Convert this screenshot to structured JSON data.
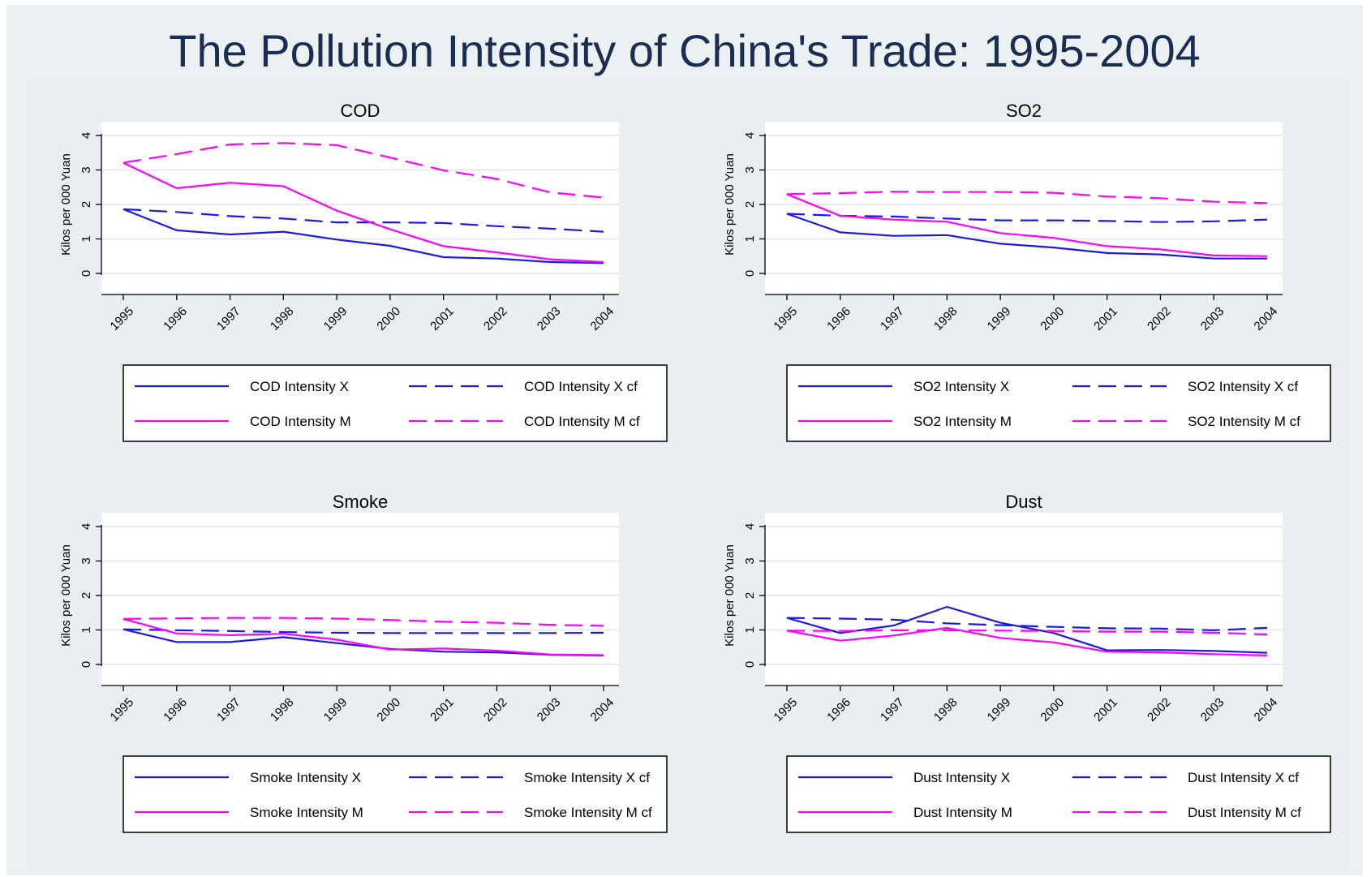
{
  "title": "The Pollution Intensity of China's Trade: 1995-2004",
  "colors": {
    "x": "#1a1ae6",
    "m": "#ff00ff"
  },
  "chart_data": [
    {
      "type": "line",
      "title": "COD",
      "ylabel": "Kilos per 000 Yuan",
      "xlabel": "",
      "x": [
        "1995",
        "1996",
        "1997",
        "1998",
        "1999",
        "2000",
        "2001",
        "2002",
        "2003",
        "2004"
      ],
      "ylim": [
        0,
        4
      ],
      "yticks": [
        "0",
        "1",
        "2",
        "3",
        "4"
      ],
      "grid": true,
      "legend": "bottom",
      "series": [
        {
          "name": "COD Intensity X",
          "color": "#1a1ae6",
          "dash": "solid",
          "values": [
            1.86,
            1.25,
            1.13,
            1.21,
            0.98,
            0.8,
            0.47,
            0.43,
            0.33,
            0.3
          ]
        },
        {
          "name": "COD Intensity X cf",
          "color": "#1a1ae6",
          "dash": "dash",
          "values": [
            1.86,
            1.78,
            1.66,
            1.59,
            1.48,
            1.48,
            1.46,
            1.37,
            1.3,
            1.21
          ]
        },
        {
          "name": "COD Intensity M",
          "color": "#ff00ff",
          "dash": "solid",
          "values": [
            3.21,
            2.47,
            2.63,
            2.53,
            1.82,
            1.28,
            0.79,
            0.61,
            0.41,
            0.33
          ]
        },
        {
          "name": "COD Intensity M cf",
          "color": "#ff00ff",
          "dash": "dash",
          "values": [
            3.21,
            3.46,
            3.74,
            3.78,
            3.72,
            3.36,
            2.99,
            2.74,
            2.35,
            2.2
          ]
        }
      ]
    },
    {
      "type": "line",
      "title": "SO2",
      "ylabel": "Kilos per 000 Yuan",
      "xlabel": "",
      "x": [
        "1995",
        "1996",
        "1997",
        "1998",
        "1999",
        "2000",
        "2001",
        "2002",
        "2003",
        "2004"
      ],
      "ylim": [
        0,
        4
      ],
      "yticks": [
        "0",
        "1",
        "2",
        "3",
        "4"
      ],
      "grid": true,
      "legend": "bottom",
      "series": [
        {
          "name": "SO2 Intensity X",
          "color": "#1a1ae6",
          "dash": "solid",
          "values": [
            1.73,
            1.19,
            1.09,
            1.11,
            0.86,
            0.75,
            0.59,
            0.55,
            0.43,
            0.43
          ]
        },
        {
          "name": "SO2 Intensity X cf",
          "color": "#1a1ae6",
          "dash": "dash",
          "values": [
            1.73,
            1.67,
            1.65,
            1.59,
            1.54,
            1.54,
            1.52,
            1.49,
            1.51,
            1.56
          ]
        },
        {
          "name": "SO2 Intensity M",
          "color": "#ff00ff",
          "dash": "solid",
          "values": [
            2.3,
            1.67,
            1.56,
            1.5,
            1.17,
            1.03,
            0.79,
            0.7,
            0.52,
            0.5
          ]
        },
        {
          "name": "SO2 Intensity M cf",
          "color": "#ff00ff",
          "dash": "dash",
          "values": [
            2.3,
            2.33,
            2.37,
            2.36,
            2.36,
            2.34,
            2.23,
            2.18,
            2.08,
            2.04
          ]
        }
      ]
    },
    {
      "type": "line",
      "title": "Smoke",
      "ylabel": "Kilos per 000 Yuan",
      "xlabel": "",
      "x": [
        "1995",
        "1996",
        "1997",
        "1998",
        "1999",
        "2000",
        "2001",
        "2002",
        "2003",
        "2004"
      ],
      "ylim": [
        0,
        4
      ],
      "yticks": [
        "0",
        "1",
        "2",
        "3",
        "4"
      ],
      "grid": true,
      "legend": "bottom",
      "series": [
        {
          "name": "Smoke Intensity X",
          "color": "#1a1ae6",
          "dash": "solid",
          "values": [
            1.02,
            0.65,
            0.65,
            0.79,
            0.62,
            0.45,
            0.37,
            0.35,
            0.28,
            0.26
          ]
        },
        {
          "name": "Smoke Intensity X cf",
          "color": "#1a1ae6",
          "dash": "dash",
          "values": [
            1.02,
            0.99,
            0.97,
            0.94,
            0.92,
            0.91,
            0.91,
            0.91,
            0.91,
            0.92
          ]
        },
        {
          "name": "Smoke Intensity M",
          "color": "#ff00ff",
          "dash": "solid",
          "values": [
            1.32,
            0.9,
            0.85,
            0.89,
            0.72,
            0.43,
            0.46,
            0.4,
            0.29,
            0.27
          ]
        },
        {
          "name": "Smoke Intensity M cf",
          "color": "#ff00ff",
          "dash": "dash",
          "values": [
            1.32,
            1.34,
            1.35,
            1.35,
            1.33,
            1.29,
            1.24,
            1.21,
            1.15,
            1.12
          ]
        }
      ]
    },
    {
      "type": "line",
      "title": "Dust",
      "ylabel": "Kilos per 000 Yuan",
      "xlabel": "",
      "x": [
        "1995",
        "1996",
        "1997",
        "1998",
        "1999",
        "2000",
        "2001",
        "2002",
        "2003",
        "2004"
      ],
      "ylim": [
        0,
        4
      ],
      "yticks": [
        "0",
        "1",
        "2",
        "3",
        "4"
      ],
      "grid": true,
      "legend": "bottom",
      "series": [
        {
          "name": "Dust Intensity X",
          "color": "#1a1ae6",
          "dash": "solid",
          "values": [
            1.35,
            0.91,
            1.13,
            1.67,
            1.21,
            0.91,
            0.41,
            0.42,
            0.39,
            0.34
          ]
        },
        {
          "name": "Dust Intensity X cf",
          "color": "#1a1ae6",
          "dash": "dash",
          "values": [
            1.35,
            1.33,
            1.3,
            1.19,
            1.14,
            1.09,
            1.05,
            1.04,
            0.99,
            1.06
          ]
        },
        {
          "name": "Dust Intensity M",
          "color": "#ff00ff",
          "dash": "solid",
          "values": [
            0.98,
            0.69,
            0.84,
            1.06,
            0.77,
            0.64,
            0.37,
            0.35,
            0.3,
            0.26
          ]
        },
        {
          "name": "Dust Intensity M cf",
          "color": "#ff00ff",
          "dash": "dash",
          "values": [
            0.98,
            0.97,
            0.99,
            0.99,
            0.98,
            0.97,
            0.95,
            0.95,
            0.92,
            0.87
          ]
        }
      ]
    }
  ]
}
